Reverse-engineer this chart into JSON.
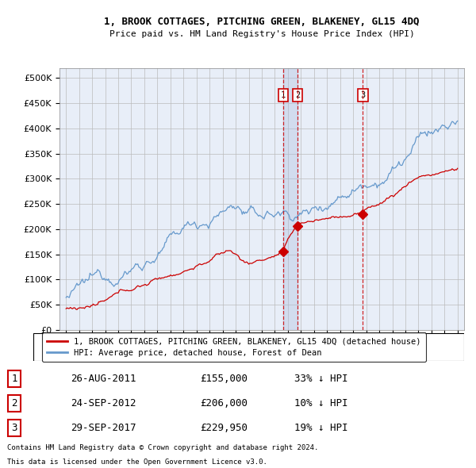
{
  "title": "1, BROOK COTTAGES, PITCHING GREEN, BLAKENEY, GL15 4DQ",
  "subtitle": "Price paid vs. HM Land Registry's House Price Index (HPI)",
  "legend_label_red": "1, BROOK COTTAGES, PITCHING GREEN, BLAKENEY, GL15 4DQ (detached house)",
  "legend_label_blue": "HPI: Average price, detached house, Forest of Dean",
  "footer1": "Contains HM Land Registry data © Crown copyright and database right 2024.",
  "footer2": "This data is licensed under the Open Government Licence v3.0.",
  "transactions": [
    {
      "num": 1,
      "date": "26-AUG-2011",
      "price": 155000,
      "pct": "33%",
      "dir": "↓",
      "year": 2011.65
    },
    {
      "num": 2,
      "date": "24-SEP-2012",
      "price": 206000,
      "pct": "10%",
      "dir": "↓",
      "year": 2012.73
    },
    {
      "num": 3,
      "date": "29-SEP-2017",
      "price": 229950,
      "pct": "19%",
      "dir": "↓",
      "year": 2017.75
    }
  ],
  "ylim": [
    0,
    520000
  ],
  "yticks": [
    0,
    50000,
    100000,
    150000,
    200000,
    250000,
    300000,
    350000,
    400000,
    450000,
    500000
  ],
  "xlim_start": 1994.5,
  "xlim_end": 2025.5,
  "color_red": "#cc0000",
  "color_blue": "#6699cc",
  "bg_color": "#e8eef8",
  "plot_bg": "#e8eef8"
}
